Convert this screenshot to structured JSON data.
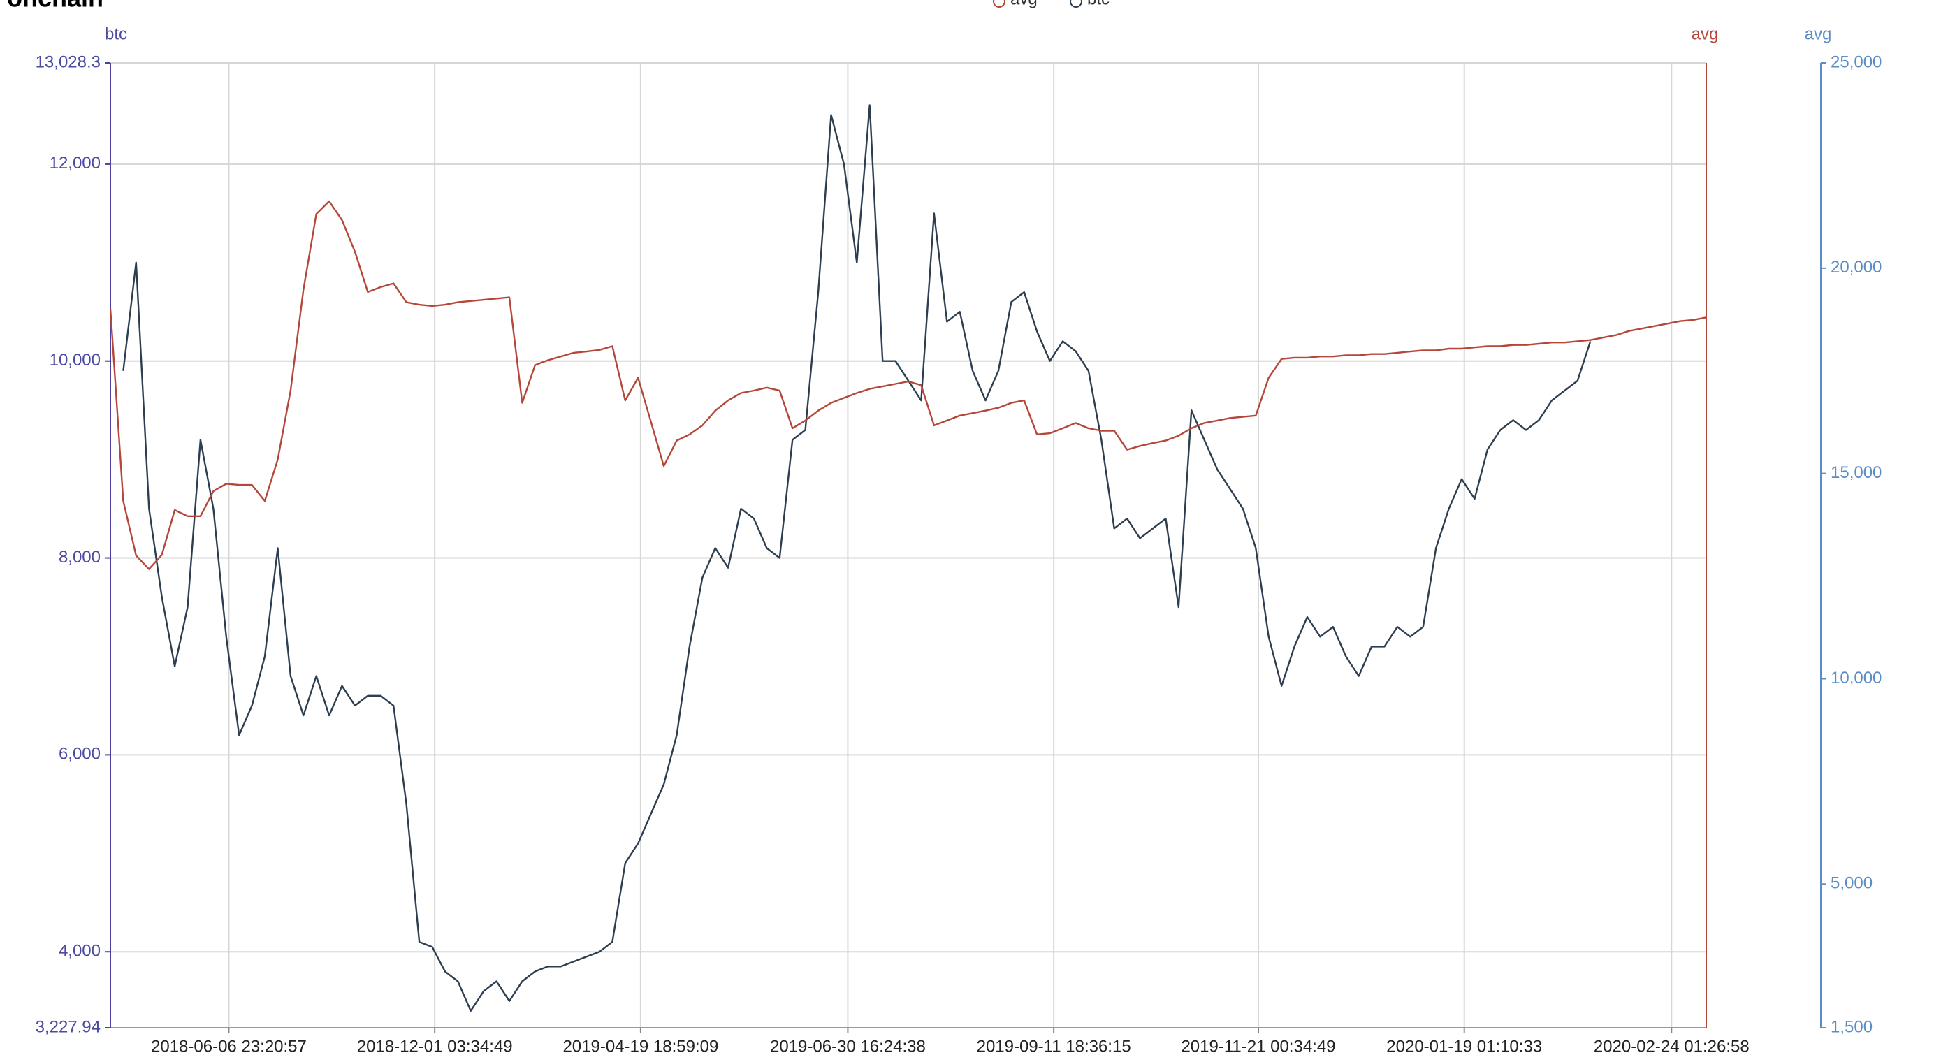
{
  "chart_data": {
    "type": "line",
    "title": "onchain",
    "y_label": "btc",
    "y2_label": "avg",
    "xlim": [
      0,
      124
    ],
    "xticks": [
      {
        "value": 9.2,
        "label": "2018-06-06 23:20:57"
      },
      {
        "value": 25.2,
        "label": "2018-12-01 03:34:49"
      },
      {
        "value": 41.2,
        "label": "2019-04-19 18:59:09"
      },
      {
        "value": 57.3,
        "label": "2019-06-30 16:24:38"
      },
      {
        "value": 73.3,
        "label": "2019-09-11 18:36:15"
      },
      {
        "value": 89.2,
        "label": "2019-11-21 00:34:49"
      },
      {
        "value": 105.2,
        "label": "2020-01-19 01:10:33"
      },
      {
        "value": 121.3,
        "label": "2020-02-24 01:26:58"
      }
    ],
    "ylim": [
      3227.94,
      13028.3
    ],
    "yticks": [
      {
        "value": 3227.94,
        "label": "3,227.94"
      },
      {
        "value": 4000,
        "label": "4,000"
      },
      {
        "value": 6000,
        "label": "6,000"
      },
      {
        "value": 8000,
        "label": "8,000"
      },
      {
        "value": 10000,
        "label": "10,000"
      },
      {
        "value": 12000,
        "label": "12,000"
      },
      {
        "value": 13028.3,
        "label": "13,028.3"
      }
    ],
    "y2lim": [
      1500,
      25000
    ],
    "y2ticks": [
      {
        "value": 1500,
        "label": "1,500"
      },
      {
        "value": 5000,
        "label": "5,000"
      },
      {
        "value": 10000,
        "label": "10,000"
      },
      {
        "value": 15000,
        "label": "15,000"
      },
      {
        "value": 20000,
        "label": "20,000"
      },
      {
        "value": 25000,
        "label": "25,000"
      }
    ],
    "grid": true,
    "series": [
      {
        "name": "btc",
        "color": "#2c3e50",
        "values": [
          null,
          9900,
          11000,
          8500,
          7600,
          6900,
          7500,
          9200,
          8500,
          7200,
          6200,
          6500,
          7000,
          8100,
          6800,
          6400,
          6800,
          6400,
          6700,
          6500,
          6600,
          6600,
          6500,
          5500,
          4100,
          4050,
          3800,
          3700,
          3400,
          3600,
          3700,
          3500,
          3700,
          3800,
          3850,
          3850,
          3900,
          3950,
          4000,
          4100,
          4900,
          5100,
          5400,
          5700,
          6200,
          7100,
          7800,
          8100,
          7900,
          8500,
          8400,
          8100,
          8000,
          9200,
          9300,
          10700,
          12500,
          12000,
          11000,
          12600,
          10000,
          10000,
          9800,
          9600,
          11500,
          10400,
          10500,
          9900,
          9600,
          9900,
          10600,
          10700,
          10300,
          10000,
          10200,
          10100,
          9900,
          9200,
          8300,
          8400,
          8200,
          8300,
          8400,
          7500,
          9500,
          9200,
          8900,
          8700,
          8500,
          8100,
          7200,
          6700,
          7100,
          7400,
          7200,
          7300,
          7000,
          6800,
          7100,
          7100,
          7300,
          7200,
          7300,
          8100,
          8500,
          8800,
          8600,
          9100,
          9300,
          9400,
          9300,
          9400,
          9600,
          9700,
          9800,
          10200,
          null,
          null,
          null,
          null,
          null,
          null,
          null,
          null,
          null
        ]
      },
      {
        "name": "avg",
        "color": "#b5473a",
        "axis": "y2",
        "axis_label": "avg",
        "values": [
          19020,
          14330,
          13000,
          12670,
          13020,
          14110,
          13960,
          13960,
          14570,
          14750,
          14720,
          14720,
          14330,
          15340,
          17020,
          19480,
          21320,
          21630,
          21170,
          20400,
          19420,
          19540,
          19630,
          19170,
          19110,
          19080,
          19110,
          19170,
          19200,
          19230,
          19260,
          19290,
          16720,
          17640,
          17760,
          17850,
          17940,
          17970,
          18010,
          18100,
          16780,
          17330,
          16260,
          15180,
          15800,
          15950,
          16170,
          16530,
          16780,
          16960,
          17020,
          17090,
          17020,
          16100,
          16290,
          16530,
          16720,
          16840,
          16960,
          17060,
          17120,
          17180,
          17240,
          17150,
          16170,
          16290,
          16410,
          16470,
          16530,
          16600,
          16720,
          16780,
          15950,
          15980,
          16100,
          16230,
          16100,
          16040,
          16040,
          15580,
          15670,
          15740,
          15800,
          15920,
          16100,
          16230,
          16290,
          16350,
          16380,
          16410,
          17330,
          17790,
          17820,
          17820,
          17850,
          17850,
          17880,
          17880,
          17910,
          17910,
          17940,
          17970,
          18000,
          18000,
          18040,
          18040,
          18070,
          18100,
          18100,
          18130,
          18130,
          18160,
          18190,
          18190,
          18220,
          18250,
          18310,
          18370,
          18470,
          18530,
          18590,
          18650,
          18710,
          18740,
          18800
        ]
      }
    ]
  }
}
